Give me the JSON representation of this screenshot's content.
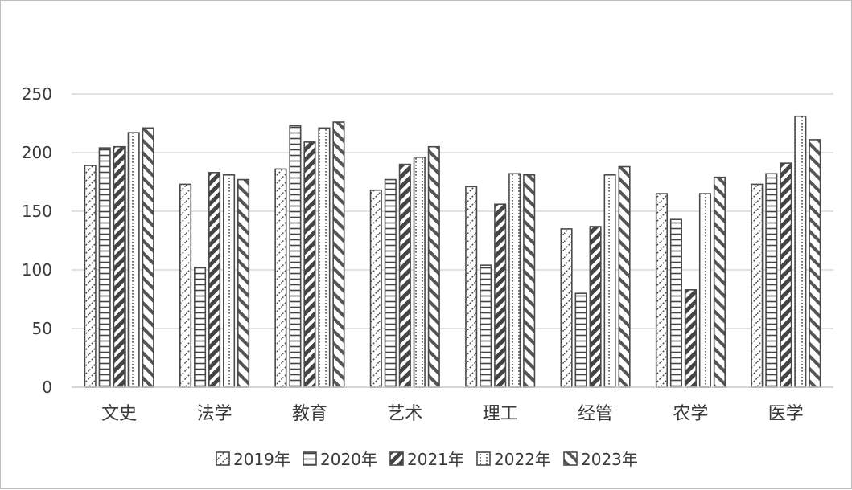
{
  "chart_data": {
    "type": "bar",
    "title": "",
    "xlabel": "",
    "ylabel": "",
    "categories": [
      "文史",
      "法学",
      "教育",
      "艺术",
      "理工",
      "经管",
      "农学",
      "医学"
    ],
    "y_ticks": [
      "0",
      "50",
      "100",
      "150",
      "200",
      "250"
    ],
    "ylim": [
      0,
      250
    ],
    "grid": true,
    "legend_position": "bottom",
    "series": [
      {
        "name": "2019年",
        "pattern": "diagonal-dots",
        "values": [
          189,
          173,
          186,
          168,
          171,
          135,
          165,
          173
        ]
      },
      {
        "name": "2020年",
        "pattern": "horizontal-lines",
        "values": [
          204,
          102,
          223,
          177,
          104,
          80,
          143,
          182
        ]
      },
      {
        "name": "2021年",
        "pattern": "diagonal-stripes",
        "values": [
          205,
          183,
          209,
          190,
          156,
          137,
          83,
          191
        ]
      },
      {
        "name": "2022年",
        "pattern": "dotted-lines",
        "values": [
          217,
          181,
          221,
          196,
          182,
          181,
          165,
          231
        ]
      },
      {
        "name": "2023年",
        "pattern": "wide-diagonal-stripes",
        "values": [
          221,
          177,
          226,
          205,
          181,
          188,
          179,
          211
        ]
      }
    ],
    "colors": {
      "stroke": "#4a4a4a",
      "grid": "#d9d9d9",
      "text": "#3a3a3a"
    }
  }
}
